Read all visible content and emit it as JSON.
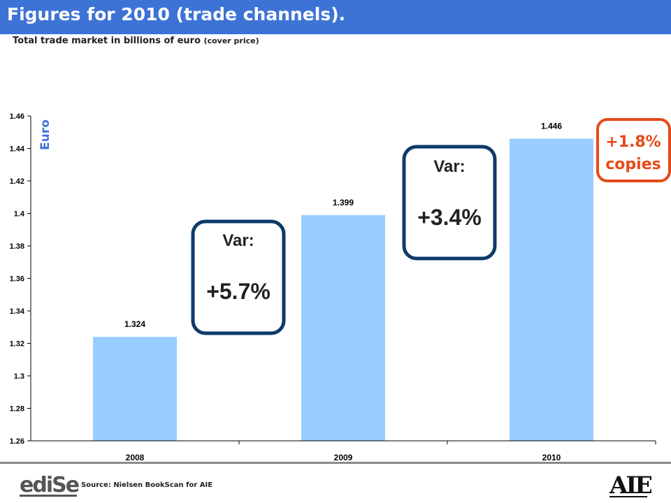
{
  "header": {
    "title": "Figures for 2010 (trade channels).",
    "subtitle_main": "Total trade market in billions of euro ",
    "subtitle_small": "(cover price)"
  },
  "chart_data": {
    "type": "bar",
    "categories": [
      "2008",
      "2009",
      "2010"
    ],
    "values": [
      1.324,
      1.399,
      1.446
    ],
    "data_labels": [
      "1.324",
      "1.399",
      "1.446"
    ],
    "ylabel": "Euro",
    "ylim": [
      1.26,
      1.46
    ],
    "y_ticks": [
      "1.26",
      "1.28",
      "1.3",
      "1.32",
      "1.34",
      "1.36",
      "1.38",
      "1.4",
      "1.42",
      "1.44",
      "1.46"
    ],
    "grid": false,
    "bar_color": "#99ccff",
    "annotations": [
      {
        "line1": "Var:",
        "line2": "+5.7%"
      },
      {
        "line1": "Var:",
        "line2": "+3.4%"
      },
      {
        "line1": "+1.8%",
        "line2": "copies"
      }
    ]
  },
  "colors": {
    "title_bar": "#3e73d6",
    "var_box_border": "#0e3a6a",
    "copies_box_border": "#e64a19",
    "copies_text": "#e64a19",
    "ylabel": "#3e73d6"
  },
  "footer": {
    "source": "Source: Nielsen BookScan for AIE",
    "logo_left": "ediSer",
    "logo_right": "AIE"
  }
}
